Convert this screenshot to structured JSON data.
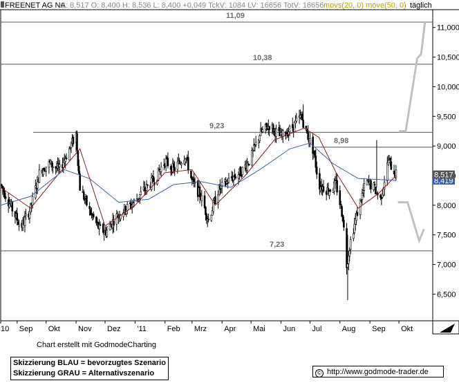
{
  "header": {
    "symbol": "FREENET AG NA",
    "quote": "C: 8,517 O: 8,400 H: 8,536 L: 8,400 +0,049 TckV: 1084 LV: 16656 TotV: 16656",
    "ma_label": "movs(20, 0) move(50, 0)",
    "interval": "täglich"
  },
  "footer": {
    "credit": "Chart erstellt mit GodmodeCharting",
    "legend_blue": "Skizzierung BLAU = bevorzugtes Szenario",
    "legend_grey": "Skizzierung GRAU = Alternativszenario",
    "url": "http://www.godmode-trader.de",
    "copyright_symbol": "©"
  },
  "colors": {
    "candles": "#000000",
    "sma20": "#8b1a1a",
    "ema50": "#3a5fb0",
    "scenario_grey": "#c0c0c0",
    "level_lines": "#555555",
    "price_tag_bg": "#555555",
    "ema_tag_bg": "#3a5fb0",
    "header_ma_color": "#b8a200"
  },
  "chart_data": {
    "type": "candlestick",
    "x_tick_labels": [
      "10",
      "Sep",
      "Okt",
      "Nov",
      "Dez",
      "'11",
      "Feb",
      "Mrz",
      "Apr",
      "Mai",
      "Jun",
      "Jul",
      "Aug",
      "Sep",
      "Okt"
    ],
    "x_ticks": [
      {
        "label": "10",
        "date": "2010-08-15"
      },
      {
        "label": "Sep",
        "date": "2010-09-01"
      },
      {
        "label": "Okt",
        "date": "2010-10-01"
      },
      {
        "label": "Nov",
        "date": "2010-11-01"
      },
      {
        "label": "Dez",
        "date": "2010-12-01"
      },
      {
        "label": "'11",
        "date": "2011-01-01"
      },
      {
        "label": "Feb",
        "date": "2011-02-01"
      },
      {
        "label": "Mrz",
        "date": "2011-03-01"
      },
      {
        "label": "Apr",
        "date": "2011-04-01"
      },
      {
        "label": "Mai",
        "date": "2011-05-01"
      },
      {
        "label": "Jun",
        "date": "2011-06-01"
      },
      {
        "label": "Jul",
        "date": "2011-07-01"
      },
      {
        "label": "Aug",
        "date": "2011-08-01"
      },
      {
        "label": "Sep",
        "date": "2011-09-01"
      },
      {
        "label": "Okt",
        "date": "2011-10-01"
      }
    ],
    "x_range": [
      "2010-08-15",
      "2011-11-05"
    ],
    "y_range": [
      6.05,
      11.3
    ],
    "y_ticks": [
      "6,500",
      "7,000",
      "7,500",
      "8,000",
      "8,500",
      "9,000",
      "9,500",
      "10,000",
      "10,500",
      "11,000"
    ],
    "y_tick_values": [
      6.5,
      7.0,
      7.5,
      8.0,
      8.5,
      9.0,
      9.5,
      10.0,
      10.5,
      11.0
    ],
    "grid": false,
    "horizontal_levels": [
      {
        "value": 11.09,
        "label": "11,09"
      },
      {
        "value": 10.38,
        "label": "10,38"
      },
      {
        "value": 9.23,
        "label": "9,23"
      },
      {
        "value": 8.98,
        "label": "8,98"
      },
      {
        "value": 7.23,
        "label": "7,23"
      }
    ],
    "last_price": {
      "value": 8.517,
      "label": "8,517"
    },
    "ema_last": {
      "value": 8.419,
      "label": "8,419"
    },
    "price_path": [
      [
        "2010-08-15",
        8.35
      ],
      [
        "2010-08-25",
        8.0
      ],
      [
        "2010-09-05",
        7.62
      ],
      [
        "2010-09-15",
        7.95
      ],
      [
        "2010-09-25",
        8.6
      ],
      [
        "2010-10-05",
        8.7
      ],
      [
        "2010-10-15",
        8.6
      ],
      [
        "2010-10-25",
        8.95
      ],
      [
        "2010-11-01",
        9.2
      ],
      [
        "2010-11-05",
        8.3
      ],
      [
        "2010-11-15",
        7.9
      ],
      [
        "2010-11-25",
        7.6
      ],
      [
        "2010-12-02",
        7.55
      ],
      [
        "2010-12-10",
        7.75
      ],
      [
        "2010-12-18",
        7.9
      ],
      [
        "2010-12-28",
        8.0
      ],
      [
        "2011-01-10",
        8.25
      ],
      [
        "2011-01-22",
        8.45
      ],
      [
        "2011-02-01",
        8.75
      ],
      [
        "2011-02-10",
        8.6
      ],
      [
        "2011-02-22",
        8.85
      ],
      [
        "2011-03-01",
        8.4
      ],
      [
        "2011-03-10",
        8.15
      ],
      [
        "2011-03-18",
        7.75
      ],
      [
        "2011-03-28",
        8.25
      ],
      [
        "2011-04-10",
        8.45
      ],
      [
        "2011-04-20",
        8.55
      ],
      [
        "2011-05-01",
        8.8
      ],
      [
        "2011-05-10",
        9.2
      ],
      [
        "2011-05-20",
        9.35
      ],
      [
        "2011-06-01",
        9.15
      ],
      [
        "2011-06-12",
        9.3
      ],
      [
        "2011-06-22",
        9.5
      ],
      [
        "2011-06-28",
        9.2
      ],
      [
        "2011-07-05",
        8.9
      ],
      [
        "2011-07-10",
        8.35
      ],
      [
        "2011-07-20",
        8.25
      ],
      [
        "2011-07-28",
        8.35
      ],
      [
        "2011-08-04",
        7.8
      ],
      [
        "2011-08-08",
        7.0
      ],
      [
        "2011-08-12",
        7.4
      ],
      [
        "2011-08-20",
        7.95
      ],
      [
        "2011-08-28",
        8.4
      ],
      [
        "2011-09-05",
        8.3
      ],
      [
        "2011-09-12",
        8.1
      ],
      [
        "2011-09-20",
        8.75
      ],
      [
        "2011-09-28",
        8.517
      ]
    ],
    "notable_candles": [
      {
        "date": "2010-11-01",
        "high": 9.26,
        "low": 8.9
      },
      {
        "date": "2011-06-24",
        "high": 9.7,
        "low": 9.3
      },
      {
        "date": "2011-08-09",
        "high": 7.5,
        "low": 6.4
      },
      {
        "date": "2011-09-08",
        "high": 9.1,
        "low": 8.3
      }
    ],
    "series": [
      {
        "name": "movs(20, 0)",
        "type": "line",
        "points": [
          [
            "2010-08-15",
            8.3
          ],
          [
            "2010-09-15",
            7.95
          ],
          [
            "2010-10-15",
            8.55
          ],
          [
            "2010-11-05",
            8.95
          ],
          [
            "2010-12-01",
            7.65
          ],
          [
            "2011-01-01",
            8.0
          ],
          [
            "2011-02-01",
            8.55
          ],
          [
            "2011-03-01",
            8.6
          ],
          [
            "2011-03-25",
            8.0
          ],
          [
            "2011-04-25",
            8.5
          ],
          [
            "2011-05-25",
            9.1
          ],
          [
            "2011-06-25",
            9.3
          ],
          [
            "2011-07-10",
            9.15
          ],
          [
            "2011-07-28",
            8.55
          ],
          [
            "2011-08-20",
            7.95
          ],
          [
            "2011-09-10",
            8.2
          ],
          [
            "2011-09-28",
            8.5
          ]
        ]
      },
      {
        "name": "move(50, 0)",
        "type": "line",
        "points": [
          [
            "2010-08-15",
            8.0
          ],
          [
            "2010-09-15",
            8.15
          ],
          [
            "2010-10-20",
            8.6
          ],
          [
            "2010-11-15",
            8.45
          ],
          [
            "2010-12-15",
            8.05
          ],
          [
            "2011-01-15",
            8.1
          ],
          [
            "2011-02-10",
            8.35
          ],
          [
            "2011-03-10",
            8.4
          ],
          [
            "2011-04-10",
            8.3
          ],
          [
            "2011-05-10",
            8.6
          ],
          [
            "2011-06-10",
            8.95
          ],
          [
            "2011-07-01",
            9.05
          ],
          [
            "2011-07-25",
            8.7
          ],
          [
            "2011-08-20",
            8.45
          ],
          [
            "2011-09-28",
            8.419
          ]
        ]
      },
      {
        "name": "Skizzierung GRAU oben",
        "type": "line",
        "points": [
          [
            "2011-10-01",
            9.25
          ],
          [
            "2011-10-08",
            9.25
          ],
          [
            "2011-10-20",
            10.48
          ],
          [
            "2011-10-24",
            10.55
          ],
          [
            "2011-10-28",
            11.09
          ]
        ]
      },
      {
        "name": "Skizzierung GRAU unten",
        "type": "line",
        "points": [
          [
            "2011-09-30",
            8.05
          ],
          [
            "2011-10-10",
            8.05
          ],
          [
            "2011-10-22",
            7.4
          ],
          [
            "2011-10-27",
            7.6
          ]
        ]
      }
    ]
  }
}
